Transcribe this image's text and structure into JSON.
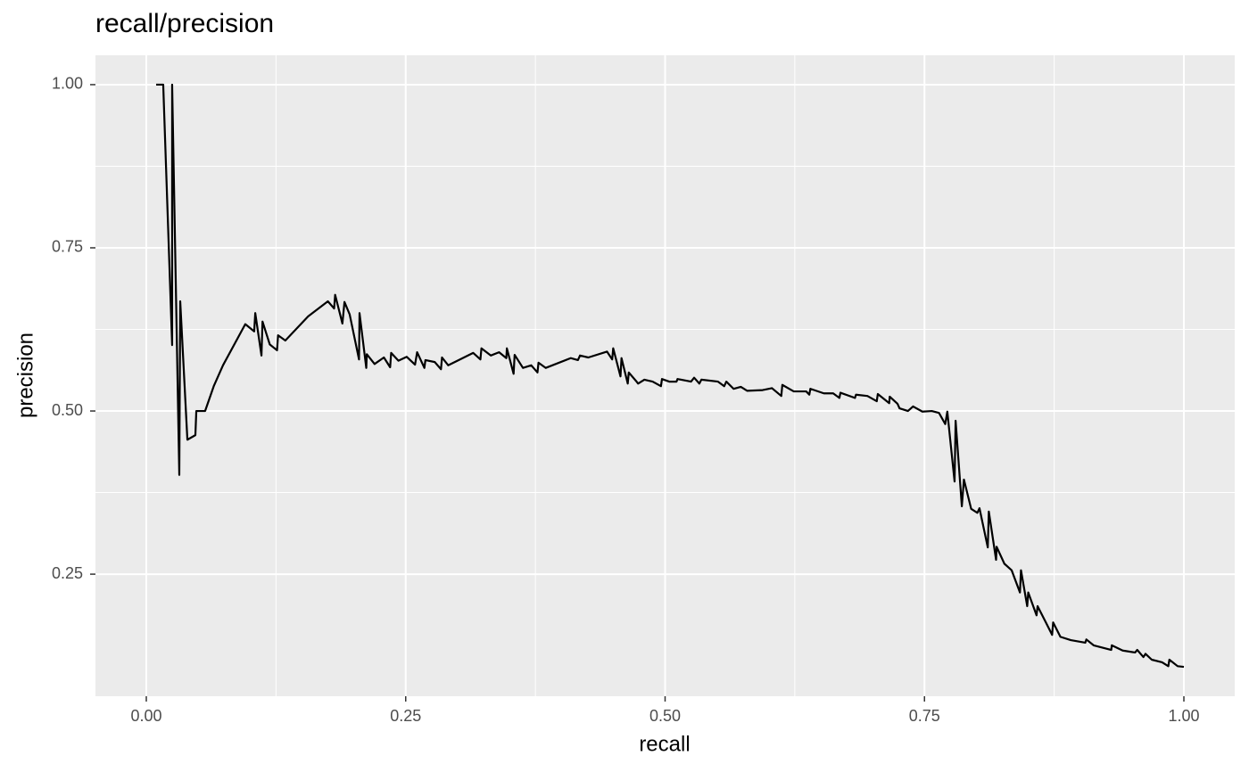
{
  "chart_data": {
    "type": "line",
    "title": "recall/precision",
    "x_label": "recall",
    "y_label": "precision",
    "color": "#000000",
    "grid": true,
    "xlim": [
      -0.049,
      1.049
    ],
    "ylim": [
      0.063,
      1.045
    ],
    "xticks": [
      {
        "value": 0,
        "label": "0.00"
      },
      0.25,
      {
        "value": 0.5,
        "label": "0.50"
      },
      0.75,
      {
        "value": 1,
        "label": "1.00"
      }
    ],
    "yticks": [
      0.25,
      {
        "value": 0.5,
        "label": "0.50"
      },
      0.75,
      {
        "value": 1,
        "label": "1.00"
      }
    ],
    "x": [
      0.0095,
      0.0163,
      0.0249,
      0.0249,
      0.0318,
      0.0327,
      0.0396,
      0.0473,
      0.0482,
      0.0567,
      0.065,
      0.0739,
      0.0954,
      0.104,
      0.105,
      0.111,
      0.112,
      0.119,
      0.126,
      0.127,
      0.134,
      0.156,
      0.175,
      0.181,
      0.182,
      0.189,
      0.191,
      0.196,
      0.205,
      0.2055,
      0.212,
      0.2125,
      0.22,
      0.229,
      0.235,
      0.236,
      0.243,
      0.251,
      0.259,
      0.261,
      0.268,
      0.269,
      0.278,
      0.284,
      0.285,
      0.291,
      0.315,
      0.322,
      0.323,
      0.332,
      0.34,
      0.347,
      0.3475,
      0.354,
      0.355,
      0.363,
      0.371,
      0.377,
      0.378,
      0.385,
      0.409,
      0.416,
      0.418,
      0.426,
      0.444,
      0.449,
      0.45,
      0.457,
      0.458,
      0.464,
      0.465,
      0.472,
      0.474,
      0.48,
      0.488,
      0.496,
      0.497,
      0.504,
      0.511,
      0.512,
      0.525,
      0.528,
      0.533,
      0.535,
      0.551,
      0.557,
      0.559,
      0.566,
      0.573,
      0.579,
      0.594,
      0.603,
      0.612,
      0.613,
      0.624,
      0.636,
      0.639,
      0.64,
      0.653,
      0.662,
      0.668,
      0.669,
      0.683,
      0.684,
      0.695,
      0.704,
      0.705,
      0.716,
      0.7165,
      0.724,
      0.726,
      0.734,
      0.739,
      0.748,
      0.757,
      0.764,
      0.77,
      0.772,
      0.779,
      0.78,
      0.786,
      0.788,
      0.795,
      0.801,
      0.803,
      0.811,
      0.812,
      0.819,
      0.8195,
      0.827,
      0.834,
      0.842,
      0.843,
      0.849,
      0.85,
      0.858,
      0.859,
      0.867,
      0.873,
      0.874,
      0.881,
      0.891,
      0.905,
      0.906,
      0.913,
      0.93,
      0.9305,
      0.941,
      0.953,
      0.955,
      0.961,
      0.963,
      0.969,
      0.979,
      0.985,
      0.986,
      0.994,
      1.0
    ],
    "values": [
      1.0,
      1.0,
      0.601,
      1.0,
      0.402,
      0.668,
      0.456,
      0.463,
      0.5,
      0.5,
      0.538,
      0.57,
      0.633,
      0.622,
      0.65,
      0.585,
      0.637,
      0.602,
      0.593,
      0.616,
      0.608,
      0.645,
      0.668,
      0.657,
      0.678,
      0.634,
      0.667,
      0.648,
      0.579,
      0.65,
      0.566,
      0.587,
      0.572,
      0.582,
      0.567,
      0.589,
      0.577,
      0.583,
      0.571,
      0.59,
      0.566,
      0.578,
      0.575,
      0.564,
      0.582,
      0.57,
      0.589,
      0.579,
      0.596,
      0.585,
      0.59,
      0.581,
      0.596,
      0.557,
      0.586,
      0.566,
      0.57,
      0.559,
      0.574,
      0.566,
      0.581,
      0.578,
      0.585,
      0.582,
      0.591,
      0.579,
      0.596,
      0.553,
      0.581,
      0.542,
      0.559,
      0.546,
      0.542,
      0.548,
      0.545,
      0.538,
      0.549,
      0.545,
      0.545,
      0.549,
      0.545,
      0.551,
      0.542,
      0.548,
      0.545,
      0.538,
      0.545,
      0.534,
      0.537,
      0.531,
      0.532,
      0.535,
      0.523,
      0.54,
      0.53,
      0.53,
      0.525,
      0.534,
      0.527,
      0.527,
      0.52,
      0.528,
      0.52,
      0.525,
      0.523,
      0.515,
      0.526,
      0.512,
      0.522,
      0.511,
      0.504,
      0.5,
      0.507,
      0.499,
      0.5,
      0.497,
      0.48,
      0.499,
      0.392,
      0.485,
      0.354,
      0.395,
      0.35,
      0.344,
      0.351,
      0.291,
      0.346,
      0.272,
      0.292,
      0.266,
      0.256,
      0.222,
      0.256,
      0.201,
      0.222,
      0.187,
      0.201,
      0.176,
      0.157,
      0.176,
      0.154,
      0.149,
      0.145,
      0.15,
      0.141,
      0.134,
      0.141,
      0.133,
      0.13,
      0.134,
      0.123,
      0.128,
      0.119,
      0.115,
      0.109,
      0.119,
      0.109,
      0.108
    ]
  }
}
